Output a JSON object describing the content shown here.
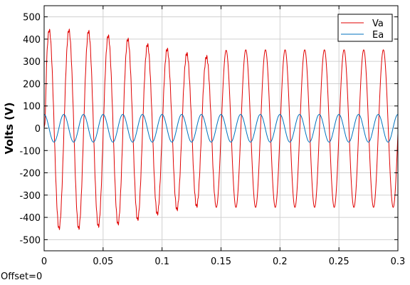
{
  "footer": {
    "offset_text": "Offset=0"
  },
  "chart_data": {
    "type": "line",
    "title": "",
    "xlabel": "",
    "ylabel": "Volts (V)",
    "xlim": [
      0,
      0.3
    ],
    "ylim": [
      -550,
      550
    ],
    "x_ticks": [
      0,
      0.05,
      0.1,
      0.15,
      0.2,
      0.25,
      0.3
    ],
    "x_tick_labels": [
      "0",
      "0.05",
      "0.1",
      "0.15",
      "0.2",
      "0.25",
      "0.3"
    ],
    "y_ticks": [
      -500,
      -400,
      -300,
      -200,
      -100,
      0,
      100,
      200,
      300,
      400,
      500
    ],
    "y_tick_labels": [
      "-500",
      "-400",
      "-300",
      "-200",
      "-100",
      "0",
      "100",
      "200",
      "300",
      "400",
      "500"
    ],
    "grid": true,
    "legend_position": "top-right",
    "series": [
      {
        "name": "Va",
        "color": "#e00000",
        "description_period": 0.0166667,
        "x": [
          0,
          0.004,
          0.0125,
          0.0208,
          0.0292,
          0.0375,
          0.0458,
          0.0542,
          0.0625,
          0.0708,
          0.0792,
          0.0875,
          0.0958,
          0.1042,
          0.1125,
          0.1208,
          0.1292,
          0.1375,
          0.1458,
          0.1542,
          0.1625,
          0.1708,
          0.1792,
          0.1875,
          0.1958,
          0.2042,
          0.2125,
          0.2208,
          0.2292,
          0.2375,
          0.2458,
          0.2542,
          0.2625,
          0.2708,
          0.2792,
          0.2875,
          0.2958,
          0.3
        ],
        "y": [
          0,
          440,
          -450,
          440,
          -450,
          435,
          -440,
          415,
          -430,
          400,
          -410,
          375,
          -385,
          355,
          -365,
          335,
          -350,
          320,
          -355,
          350,
          -355,
          352,
          -355,
          352,
          -355,
          352,
          -355,
          352,
          -355,
          352,
          -355,
          352,
          -355,
          352,
          -355,
          352,
          -355,
          0
        ]
      },
      {
        "name": "Ea",
        "color": "#0072bd",
        "amplitude": 62,
        "frequency_hz": 60,
        "phase_note": "sinusoid peaking at t=0"
      }
    ]
  }
}
